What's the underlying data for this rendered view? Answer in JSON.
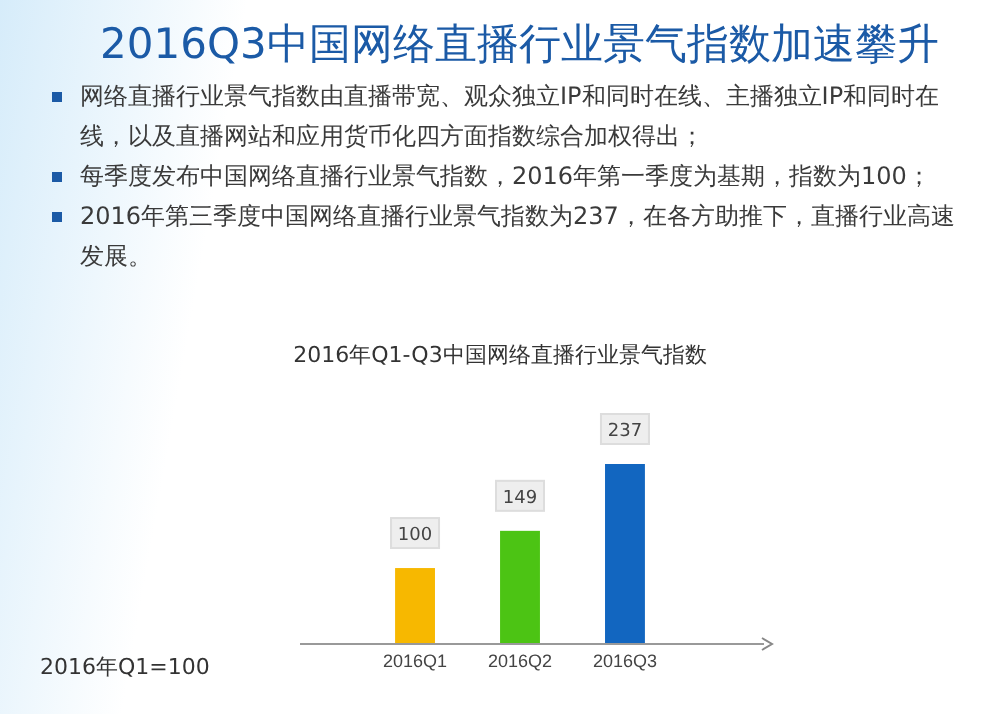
{
  "chart_data": {
    "type": "bar",
    "title": "2016Q3中国网络直播行业景气指数加速攀升",
    "subtitle": "2016年Q1-Q3中国网络直播行业景气指数",
    "annotations": [
      "网络直播行业景气指数由直播带宽、观众独立IP和同时在线、主播独立IP和同时在线，以及直播网站和应用货币化四方面指数综合加权得出；",
      "每季度发布中国网络直播行业景气指数，2016年第一季度为基期，指数为100；",
      "2016年第三季度中国网络直播行业景气指数为237，在各方助推下，直播行业高速发展。",
      "2016年Q1=100"
    ],
    "categories": [
      "2016Q1",
      "2016Q2",
      "2016Q3"
    ],
    "values": [
      100,
      149,
      237
    ],
    "colors": [
      "#f7b800",
      "#4cc414",
      "#1266c0"
    ],
    "data_labels": true
  }
}
